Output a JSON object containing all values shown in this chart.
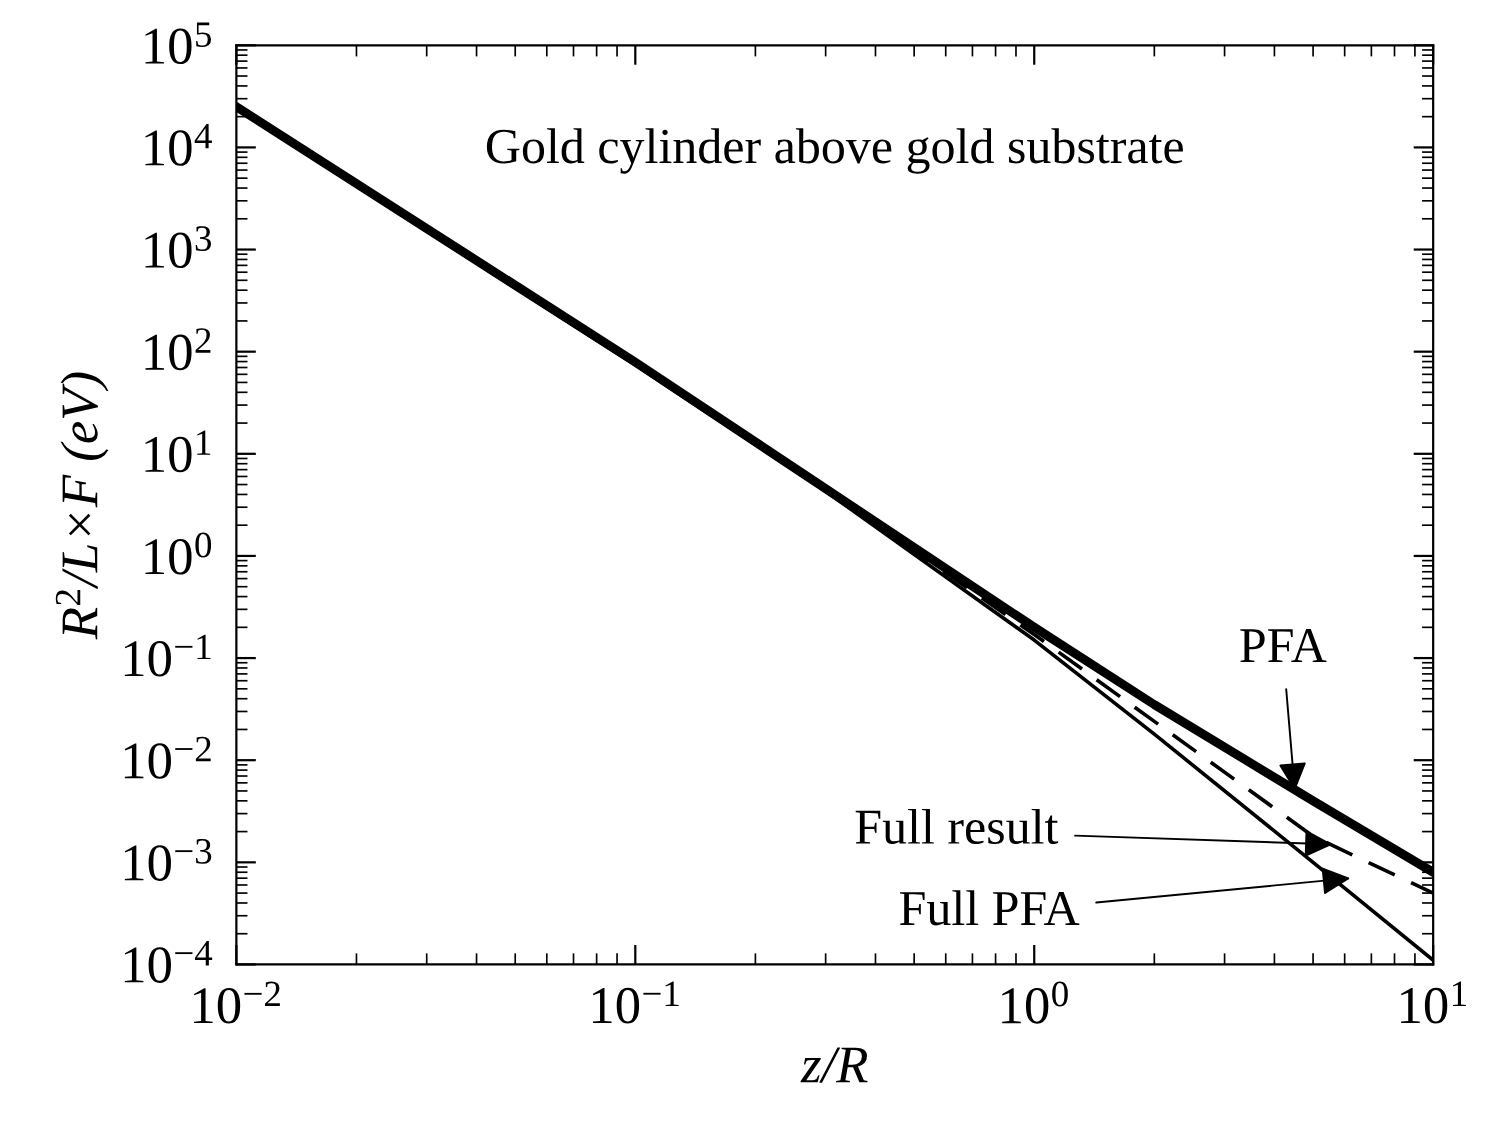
{
  "chart_data": {
    "type": "line",
    "xlabel": "z/R",
    "ylabel": "R$^{2}$/L×F (eV)",
    "log": "xy",
    "grid": false,
    "marker": "none",
    "xlim": [
      0.01,
      10
    ],
    "ylim": [
      0.0001,
      100000
    ],
    "xticks": [
      {
        "value": 0.01,
        "label": "10$^{−2}$"
      },
      {
        "value": 0.1,
        "label": "10$^{−1}$"
      },
      {
        "value": 1,
        "label": "10$^{0}$"
      },
      {
        "value": 10,
        "label": "10$^{1}$"
      }
    ],
    "yticks": [
      {
        "value": 0.0001,
        "label": "10$^{−4}$"
      },
      {
        "value": 0.001,
        "label": "10$^{−3}$"
      },
      {
        "value": 0.01,
        "label": "10$^{−2}$"
      },
      {
        "value": 0.1,
        "label": "10$^{−1}$"
      },
      {
        "value": 1,
        "label": "10$^{0}$"
      },
      {
        "value": 10,
        "label": "10$^{1}$"
      },
      {
        "value": 100,
        "label": "10$^{2}$"
      },
      {
        "value": 1000,
        "label": "10$^{3}$"
      },
      {
        "value": 10000,
        "label": "10$^{4}$"
      },
      {
        "value": 100000,
        "label": "10$^{5}$"
      }
    ],
    "series": [
      {
        "color": "#000000",
        "line_style": "solid",
        "x": [
          0.01,
          0.1,
          1,
          2,
          5,
          10
        ],
        "values": [
          25000,
          79,
          0.2,
          0.035,
          0.004,
          0.0008
        ]
      },
      {
        "color": "#000000",
        "line_style": "dashed",
        "x": [
          0.01,
          0.1,
          0.3,
          1,
          2,
          5,
          10
        ],
        "values": [
          24000,
          76,
          4.5,
          0.17,
          0.024,
          0.0018,
          0.0005
        ]
      },
      {
        "color": "#000000",
        "line_style": "solid",
        "x": [
          0.01,
          0.1,
          0.3,
          1,
          2,
          5,
          10
        ],
        "values": [
          24000,
          74,
          4.3,
          0.15,
          0.018,
          0.001,
          0.00011
        ]
      }
    ],
    "annotations": [
      "Gold cylinder above gold substrate",
      {
        "text": "PFA",
        "x": 4.5,
        "y": 0.005
      },
      {
        "text": "Full result",
        "x": 5.6,
        "y": 0.0015
      },
      {
        "text": "Full PFA",
        "x": 6.2,
        "y": 0.0007
      }
    ]
  }
}
